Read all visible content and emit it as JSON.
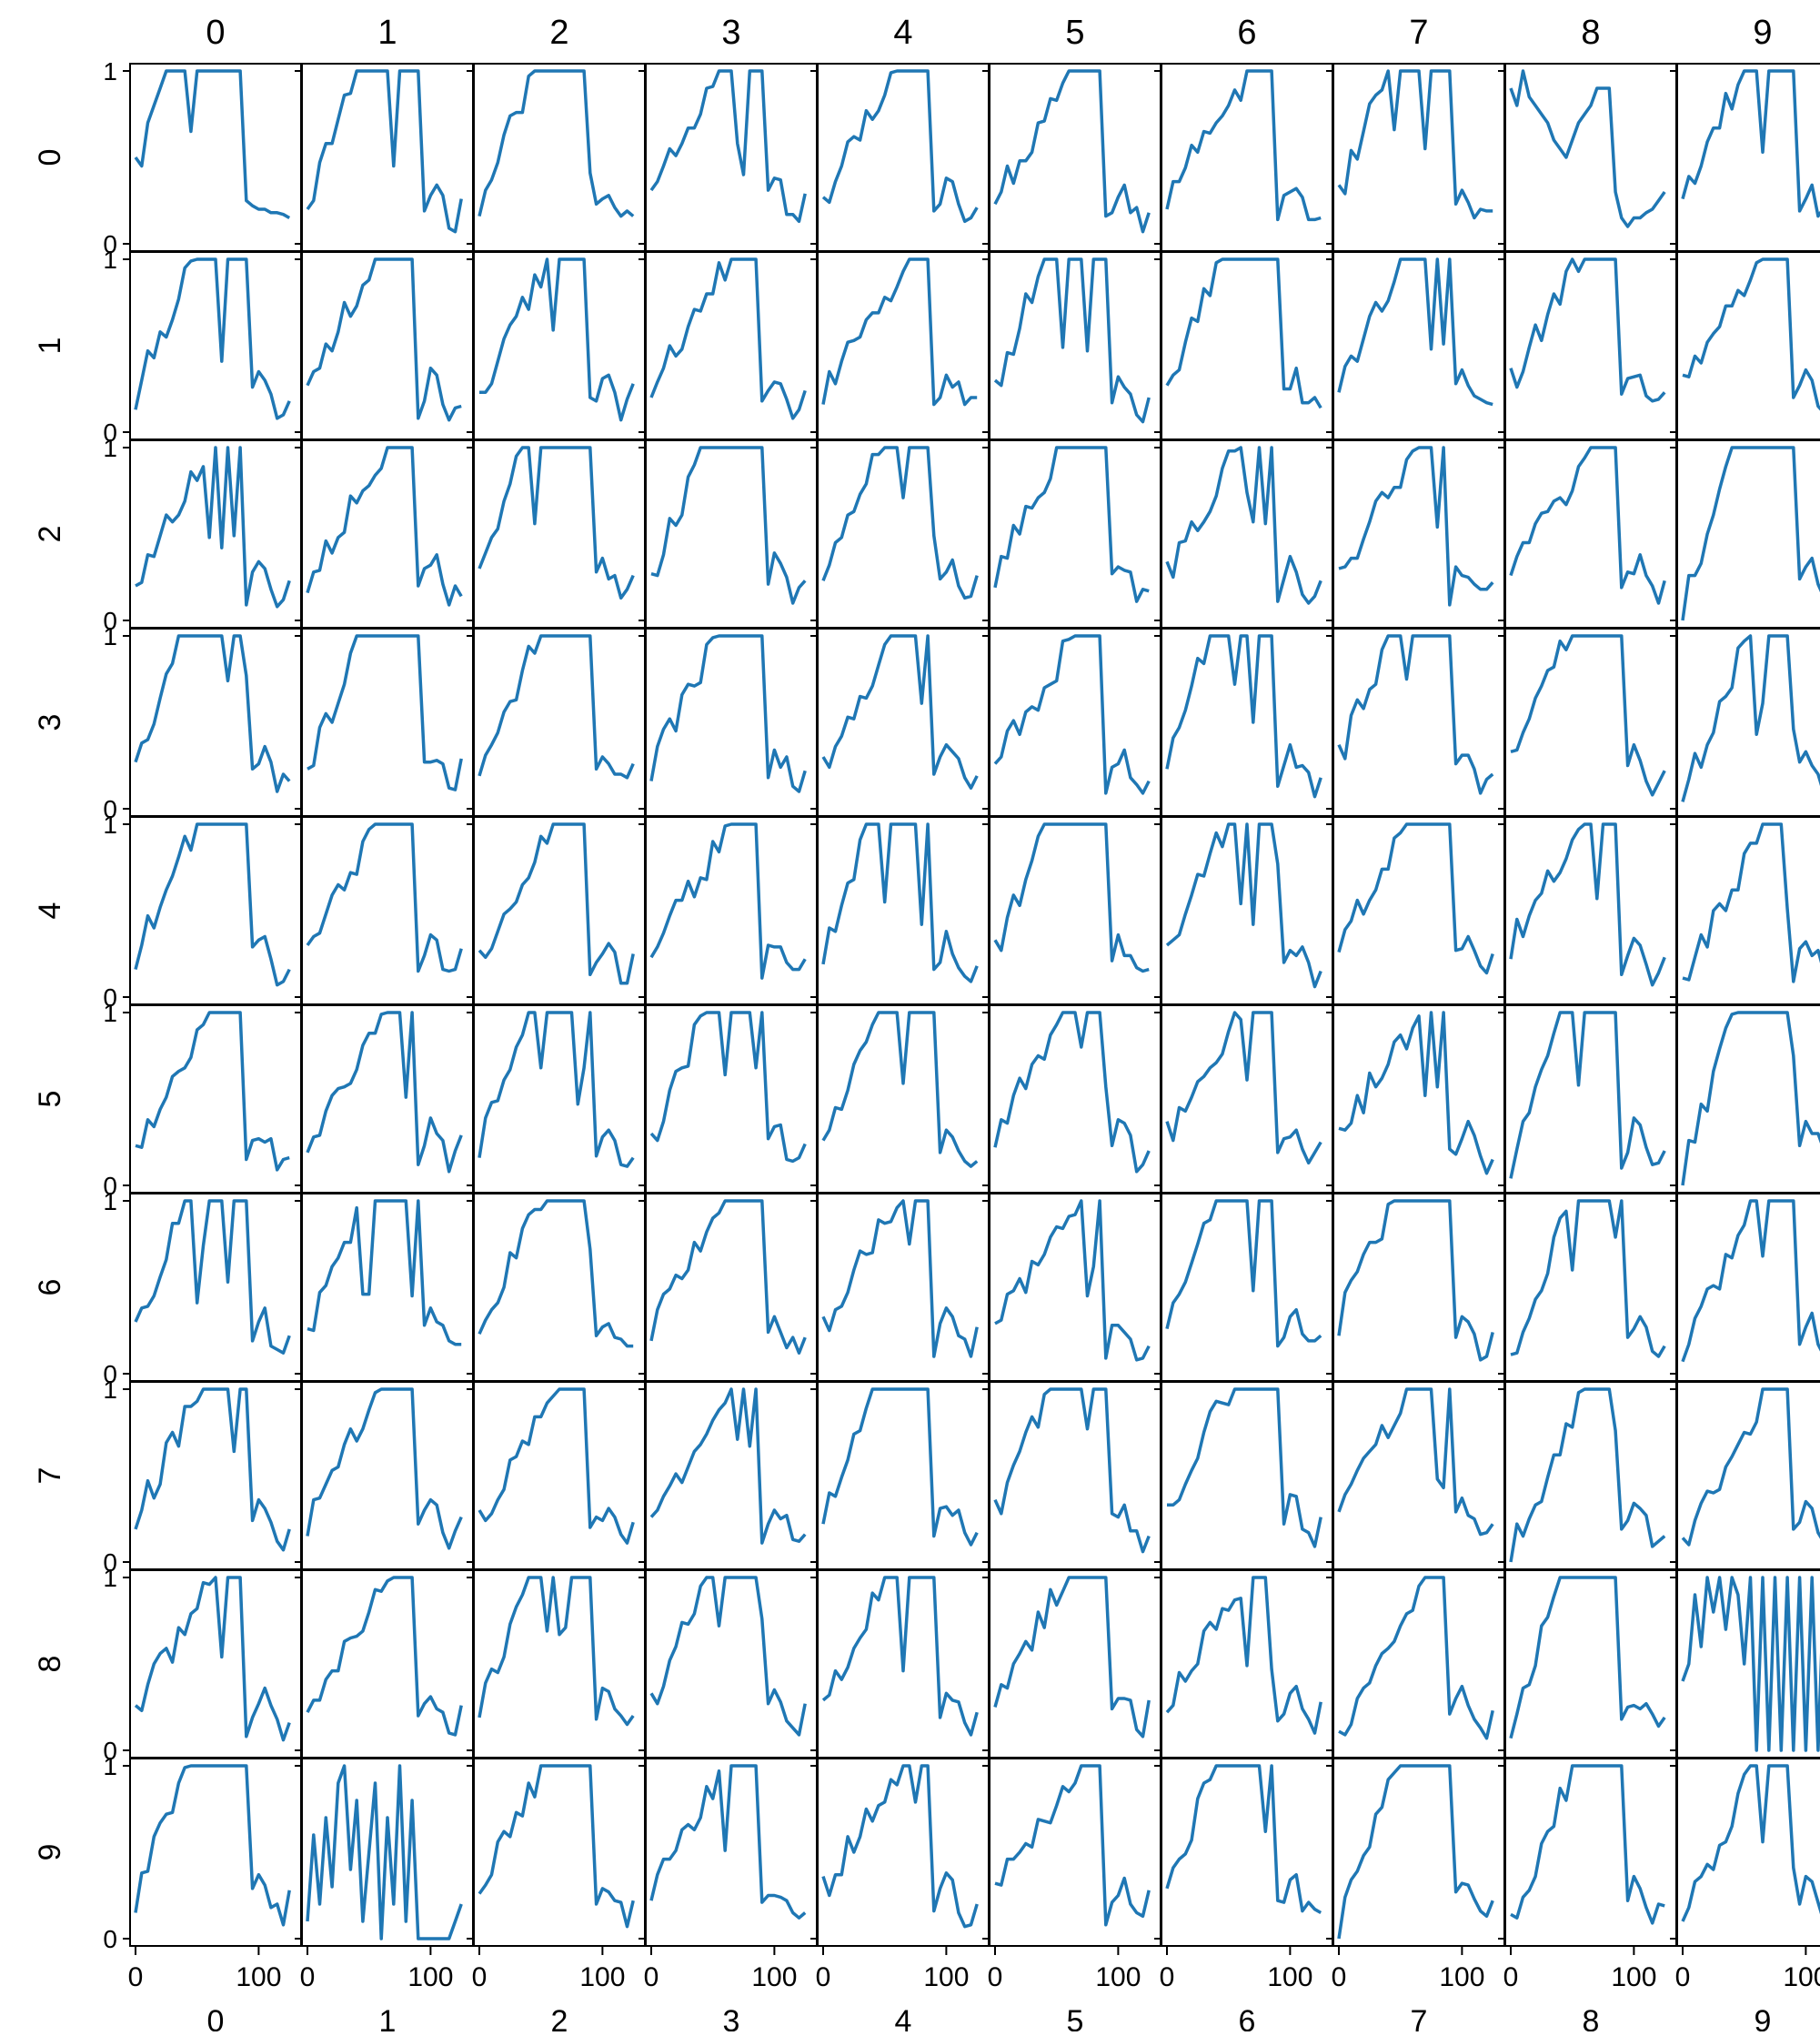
{
  "chart_data": {
    "type": "line",
    "layout": "10x10 grid of small multiples",
    "color": "#1f77b4",
    "row_labels": [
      "0",
      "1",
      "2",
      "3",
      "4",
      "5",
      "6",
      "7",
      "8",
      "9"
    ],
    "col_labels": [
      "0",
      "1",
      "2",
      "3",
      "4",
      "5",
      "6",
      "7",
      "8",
      "9"
    ],
    "x_ticks": [
      "0",
      "100"
    ],
    "y_ticks": [
      "0",
      "1"
    ],
    "xlim": [
      0,
      130
    ],
    "ylim": [
      0,
      1
    ],
    "grid": false,
    "panels": [
      {
        "row": 0,
        "col": 0,
        "x": [
          0,
          5,
          10,
          15,
          20,
          25,
          30,
          35,
          40,
          45,
          50,
          55,
          60,
          65,
          70,
          75,
          80,
          85,
          90,
          95,
          100,
          105,
          110,
          115,
          120,
          125
        ],
        "y": [
          0.5,
          0.45,
          0.7,
          0.8,
          0.9,
          1,
          1,
          1,
          1,
          0.65,
          1,
          1,
          1,
          1,
          1,
          1,
          1,
          1,
          0.25,
          0.22,
          0.2,
          0.2,
          0.18,
          0.18,
          0.17,
          0.15
        ]
      },
      {
        "row": 0,
        "col": 8,
        "x": [
          0,
          5,
          10,
          15,
          20,
          25,
          30,
          35,
          40,
          45,
          50,
          55,
          60,
          65,
          70,
          75,
          80,
          85,
          90,
          95,
          100,
          105,
          110,
          115,
          120,
          125
        ],
        "y": [
          0.9,
          0.8,
          1,
          0.85,
          0.8,
          0.75,
          0.7,
          0.6,
          0.55,
          0.5,
          0.6,
          0.7,
          0.75,
          0.8,
          0.9,
          0.9,
          0.9,
          0.3,
          0.15,
          0.1,
          0.15,
          0.15,
          0.18,
          0.2,
          0.25,
          0.3
        ]
      },
      {
        "row": 9,
        "col": 1,
        "x": [
          0,
          5,
          10,
          15,
          20,
          25,
          30,
          35,
          40,
          45,
          50,
          55,
          60,
          65,
          70,
          75,
          80,
          85,
          90,
          95,
          100,
          105,
          110,
          115,
          120,
          125
        ],
        "y": [
          0.1,
          0.6,
          0.2,
          0.7,
          0.3,
          0.9,
          1,
          0.4,
          0.8,
          0.1,
          0.5,
          0.9,
          0,
          0.7,
          0.2,
          1,
          0.1,
          0.8,
          0,
          0,
          0,
          0,
          0,
          0,
          0.1,
          0.2
        ]
      },
      {
        "row": 8,
        "col": 9,
        "x": [
          0,
          5,
          10,
          15,
          20,
          25,
          30,
          35,
          40,
          45,
          50,
          55,
          60,
          65,
          70,
          75,
          80,
          85,
          90,
          95,
          100,
          105,
          110,
          115,
          120,
          125
        ],
        "y": [
          0.4,
          0.5,
          0.9,
          0.6,
          1,
          0.8,
          1,
          0.7,
          1,
          0.9,
          0.5,
          1,
          0,
          1,
          0,
          1,
          0,
          1,
          0,
          1,
          0,
          1,
          0,
          1,
          0,
          1
        ]
      }
    ],
    "title": "",
    "xlabel": "",
    "ylabel": ""
  }
}
